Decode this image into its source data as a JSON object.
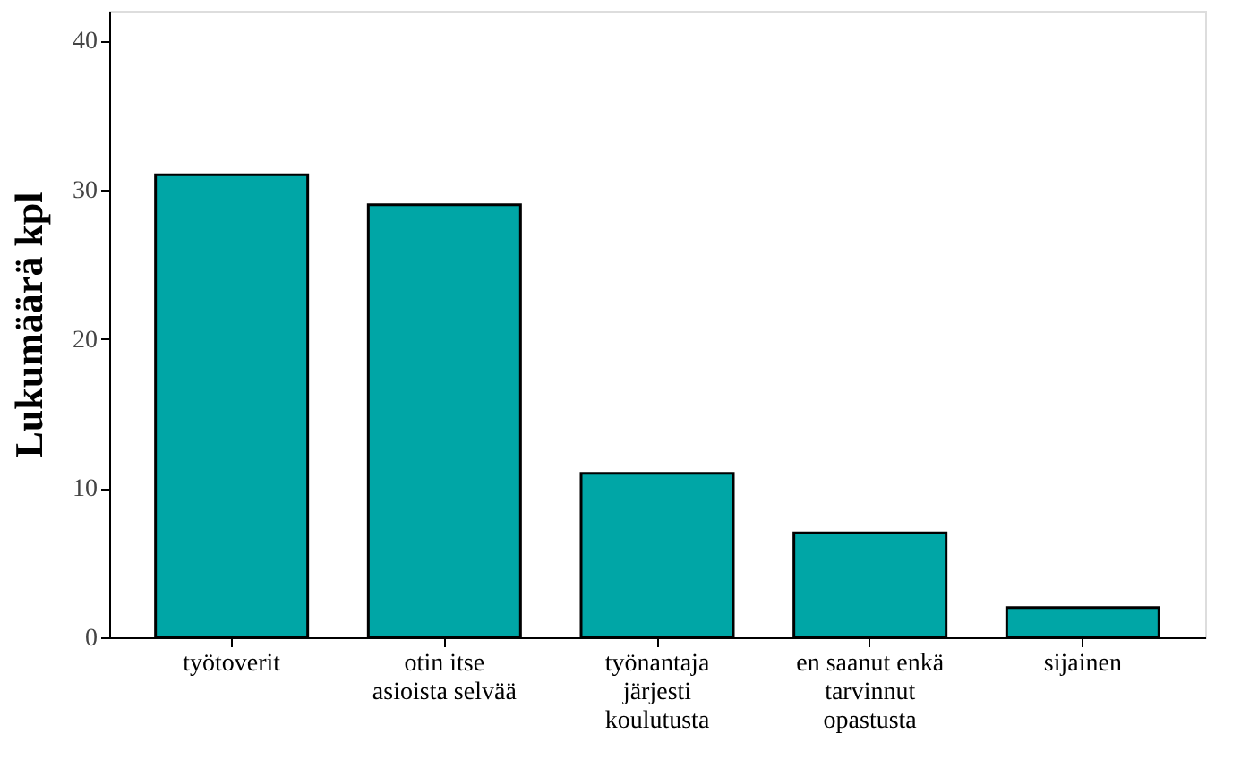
{
  "chart_data": {
    "type": "bar",
    "ylabel": "Lukumäärä kpl",
    "categories": [
      "työtoverit",
      "otin itse\nasioista selvää",
      "työnantaja\njärjesti\nkoulutusta",
      "en saanut enkä\ntarvinnut\nopastusta",
      "sijainen"
    ],
    "values": [
      31,
      29,
      11,
      7,
      2
    ],
    "color": "#00a6a6",
    "ylim": [
      0,
      42
    ],
    "yticks": [
      0,
      10,
      20,
      30,
      40
    ],
    "grid": false
  }
}
